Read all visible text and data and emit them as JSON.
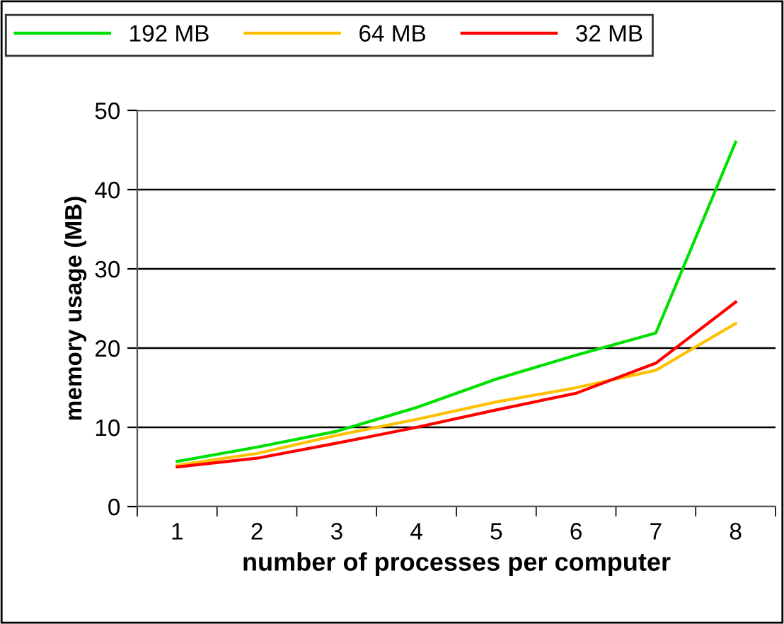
{
  "chart_data": {
    "type": "line",
    "xlabel": "number of processes per computer",
    "ylabel": "memory usage (MB)",
    "categories": [
      "1",
      "2",
      "3",
      "4",
      "5",
      "6",
      "7",
      "8"
    ],
    "series": [
      {
        "name": "192 MB",
        "color": "#00e000",
        "values": [
          5.7,
          7.5,
          9.5,
          12.5,
          16.1,
          19.1,
          21.9,
          46
        ]
      },
      {
        "name": "64 MB",
        "color": "#ffc000",
        "values": [
          5.2,
          6.7,
          9,
          11,
          13.2,
          15,
          17.2,
          23.1
        ]
      },
      {
        "name": "32 MB",
        "color": "#ff0000",
        "values": [
          5,
          6.1,
          8,
          10,
          12.2,
          14.3,
          18.1,
          25.8
        ]
      }
    ],
    "ylim": [
      0,
      50
    ],
    "yticks": [
      0,
      10,
      20,
      30,
      40,
      50
    ],
    "grid": "y",
    "legend": "top",
    "marker": "none",
    "line_style": "solid"
  }
}
